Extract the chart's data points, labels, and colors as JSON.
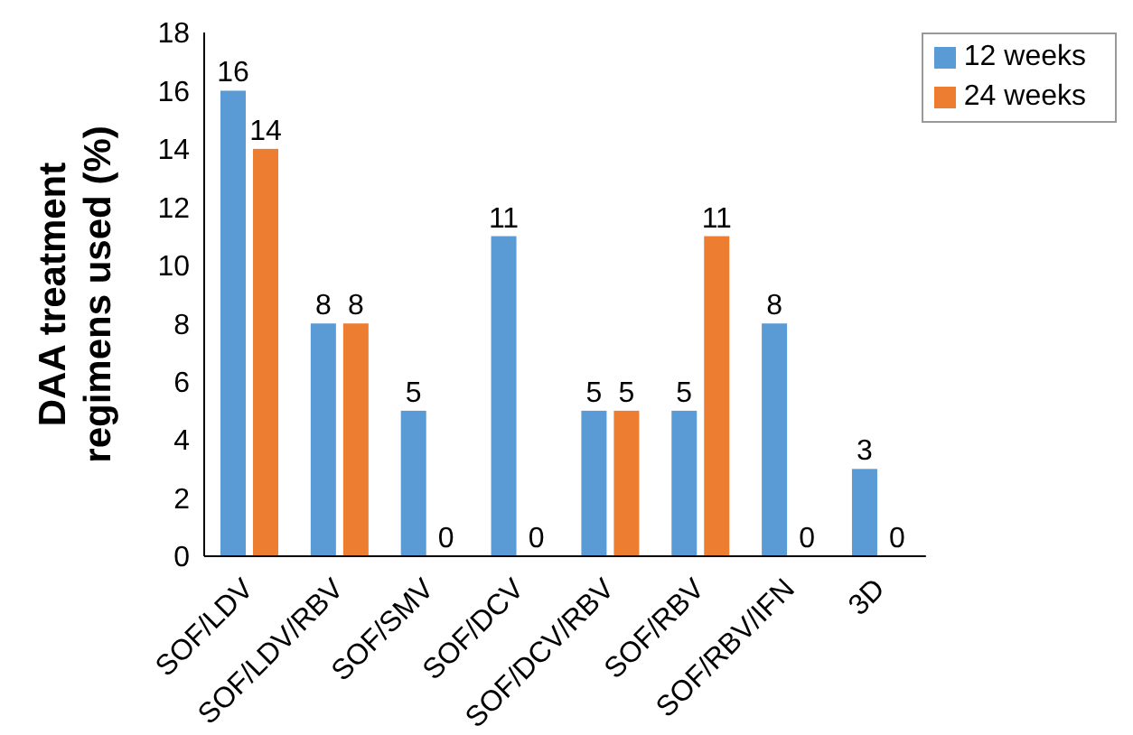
{
  "chart_data": {
    "type": "bar",
    "ylabel": "DAA treatment regimens used (%)",
    "categories": [
      "SOF/LDV",
      "SOF/LDV/RBV",
      "SOF/SMV",
      "SOF/DCV",
      "SOF/DCV/RBV",
      "SOF/RBV",
      "SOF/RBV/IFN",
      "3D"
    ],
    "series": [
      {
        "name": "12 weeks",
        "color": "#5b9bd5",
        "values": [
          16,
          8,
          5,
          11,
          5,
          5,
          8,
          3
        ]
      },
      {
        "name": "24 weeks",
        "color": "#ed7d31",
        "values": [
          14,
          8,
          0,
          0,
          5,
          11,
          0,
          0
        ]
      }
    ],
    "ylim": [
      0,
      18
    ],
    "yticks": [
      0,
      2,
      4,
      6,
      8,
      10,
      12,
      14,
      16,
      18
    ],
    "grid": false,
    "legend": "top right",
    "data_labels": true
  }
}
